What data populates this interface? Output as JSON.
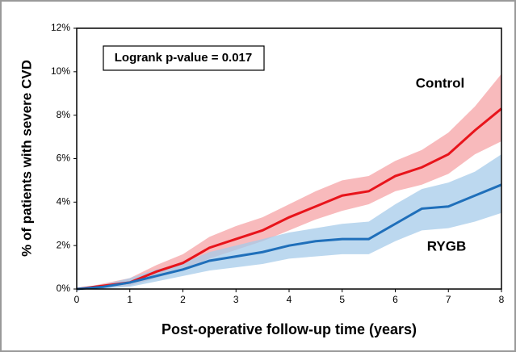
{
  "chart_data": {
    "type": "line",
    "xlabel": "Post-operative follow-up time (years)",
    "ylabel": "% of patients with severe CVD",
    "annotation": "Logrank p-value = 0.017",
    "x": [
      0,
      0.5,
      1,
      1.5,
      2,
      2.5,
      3,
      3.5,
      4,
      4.5,
      5,
      5.5,
      6,
      6.5,
      7,
      7.5,
      8
    ],
    "series": [
      {
        "name": "Control",
        "color": "#e8141b",
        "band_color": "#f5a3a5",
        "values": [
          0,
          0.15,
          0.3,
          0.8,
          1.2,
          1.9,
          2.3,
          2.7,
          3.3,
          3.8,
          4.3,
          4.5,
          5.2,
          5.6,
          6.2,
          7.3,
          8.3
        ],
        "lower": [
          0,
          0.05,
          0.15,
          0.5,
          0.9,
          1.4,
          1.8,
          2.2,
          2.7,
          3.2,
          3.6,
          3.9,
          4.5,
          4.8,
          5.3,
          6.2,
          6.8
        ],
        "upper": [
          0,
          0.25,
          0.5,
          1.1,
          1.6,
          2.4,
          2.9,
          3.3,
          3.9,
          4.5,
          5.0,
          5.2,
          5.9,
          6.4,
          7.2,
          8.4,
          9.9
        ]
      },
      {
        "name": "RYGB",
        "color": "#1f6fba",
        "band_color": "#a6cbe9",
        "values": [
          0,
          0.1,
          0.3,
          0.6,
          0.9,
          1.3,
          1.5,
          1.7,
          2.0,
          2.2,
          2.3,
          2.3,
          3.0,
          3.7,
          3.8,
          4.3,
          4.8
        ],
        "lower": [
          0,
          0.02,
          0.1,
          0.35,
          0.6,
          0.85,
          1.0,
          1.15,
          1.4,
          1.5,
          1.6,
          1.6,
          2.2,
          2.7,
          2.8,
          3.1,
          3.5
        ],
        "upper": [
          0,
          0.2,
          0.5,
          0.9,
          1.2,
          1.7,
          2.0,
          2.3,
          2.6,
          2.8,
          3.0,
          3.1,
          3.9,
          4.6,
          4.9,
          5.4,
          6.2
        ]
      }
    ],
    "xlim": [
      0,
      8
    ],
    "xticks": [
      0,
      1,
      2,
      3,
      4,
      5,
      6,
      7,
      8
    ],
    "ylim": [
      0,
      12
    ],
    "yticks": [
      {
        "value": 0,
        "label": "0%"
      },
      {
        "value": 2,
        "label": "2%"
      },
      {
        "value": 4,
        "label": "4%"
      },
      {
        "value": 6,
        "label": "6%"
      },
      {
        "value": 8,
        "label": "8%"
      },
      {
        "value": 10,
        "label": "10%"
      },
      {
        "value": 12,
        "label": "12%"
      }
    ]
  }
}
